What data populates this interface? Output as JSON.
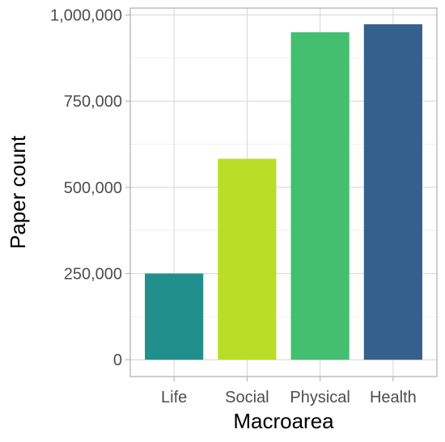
{
  "chart_data": {
    "type": "bar",
    "title": "",
    "xlabel": "Macroarea",
    "ylabel": "Paper count",
    "categories": [
      "Life",
      "Social",
      "Physical",
      "Health"
    ],
    "values": [
      250000,
      583000,
      950000,
      973000
    ],
    "colors": [
      "#21908C",
      "#BADE28",
      "#44BF70",
      "#355F8D"
    ],
    "ylim": [
      0,
      1000000
    ],
    "yticks": [
      0,
      250000,
      500000,
      750000,
      1000000
    ],
    "ytick_labels": [
      "0",
      "250,000",
      "500,000",
      "750,000",
      "1,000,000"
    ],
    "grid": true,
    "legend": "none",
    "panel_border_color": "#b3b3b3",
    "grid_major_color": "#d9d9d9",
    "grid_minor_color": "#ededed"
  }
}
